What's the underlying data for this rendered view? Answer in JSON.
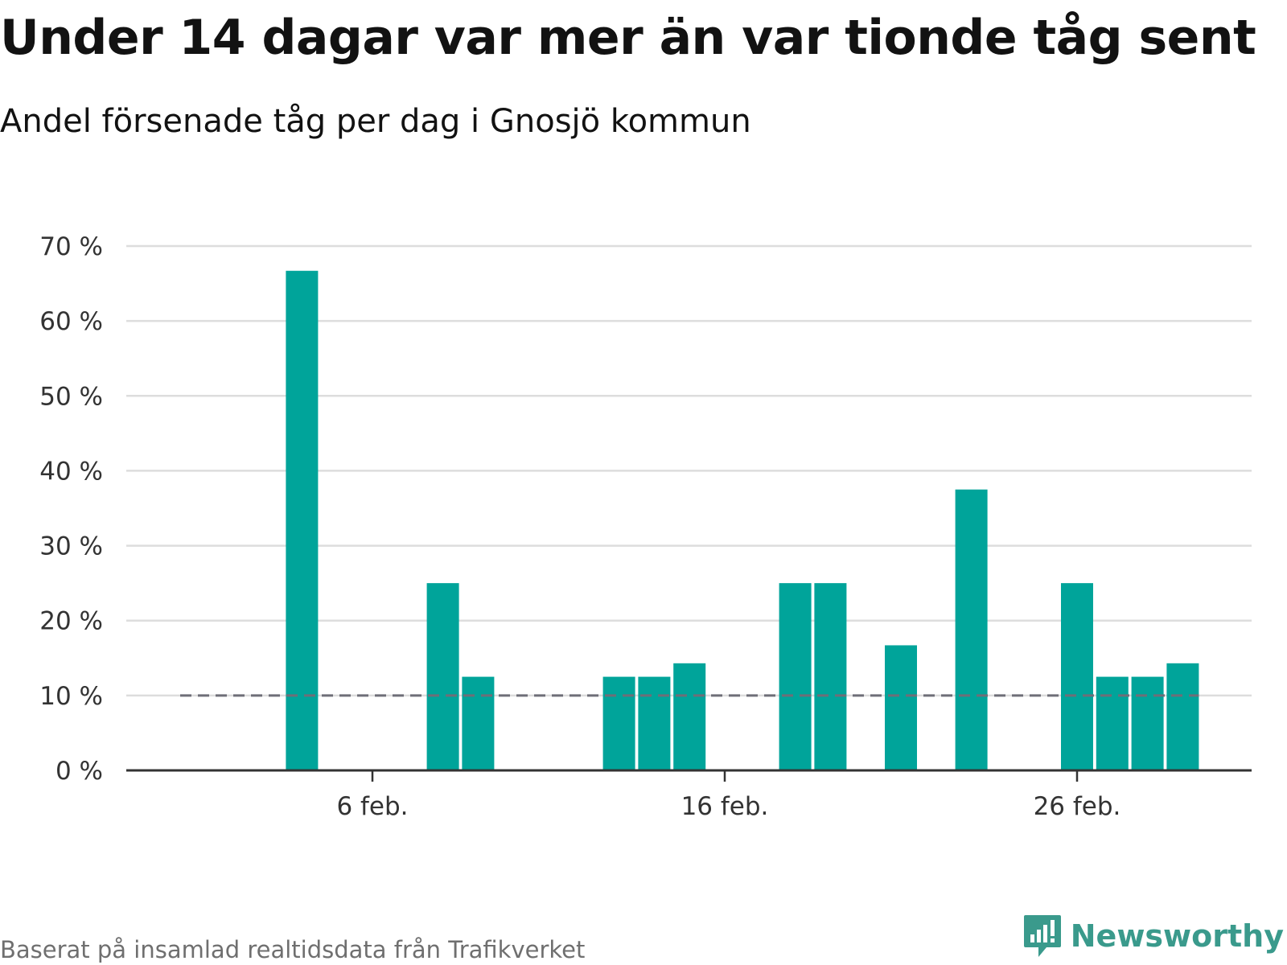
{
  "title": "Under 14 dagar var mer än var tionde tåg sent",
  "subtitle": "Andel försenade tåg per dag i Gnosjö kommun",
  "footer": "Baserat på insamlad realtidsdata från Trafikverket",
  "brand": "Newsworthy",
  "colors": {
    "bar": "#00a49a",
    "reference": "#6e6e78",
    "grid": "#dddddd",
    "axis": "#333333",
    "brand": "#3a9a8c"
  },
  "chart_data": {
    "type": "bar",
    "categories": [
      "1 feb.",
      "2 feb.",
      "3 feb.",
      "4 feb.",
      "5 feb.",
      "6 feb.",
      "7 feb.",
      "8 feb.",
      "9 feb.",
      "10 feb.",
      "11 feb.",
      "12 feb.",
      "13 feb.",
      "14 feb.",
      "15 feb.",
      "16 feb.",
      "17 feb.",
      "18 feb.",
      "19 feb.",
      "20 feb.",
      "21 feb.",
      "22 feb.",
      "23 feb.",
      "24 feb.",
      "25 feb.",
      "26 feb.",
      "27 feb.",
      "28 feb.",
      "29 feb."
    ],
    "values": [
      0,
      0,
      0,
      66.7,
      0,
      0,
      0,
      25,
      12.5,
      0,
      0,
      0,
      12.5,
      12.5,
      14.3,
      0,
      0,
      25,
      25,
      0,
      16.7,
      0,
      37.5,
      0,
      0,
      25,
      12.5,
      12.5,
      14.3
    ],
    "reference_line": {
      "value": 10,
      "style": "dashed"
    },
    "ylim": [
      0,
      70
    ],
    "yticks": [
      0,
      10,
      20,
      30,
      40,
      50,
      60,
      70
    ],
    "ytick_labels": [
      "0 %",
      "10 %",
      "20 %",
      "30 %",
      "40 %",
      "50 %",
      "60 %",
      "70 %"
    ],
    "xticks": [
      {
        "category": "6 feb.",
        "label": "6 feb."
      },
      {
        "category": "16 feb.",
        "label": "16 feb."
      },
      {
        "category": "26 feb.",
        "label": "26 feb."
      }
    ],
    "xlabel": "",
    "ylabel": "",
    "grid": true
  }
}
